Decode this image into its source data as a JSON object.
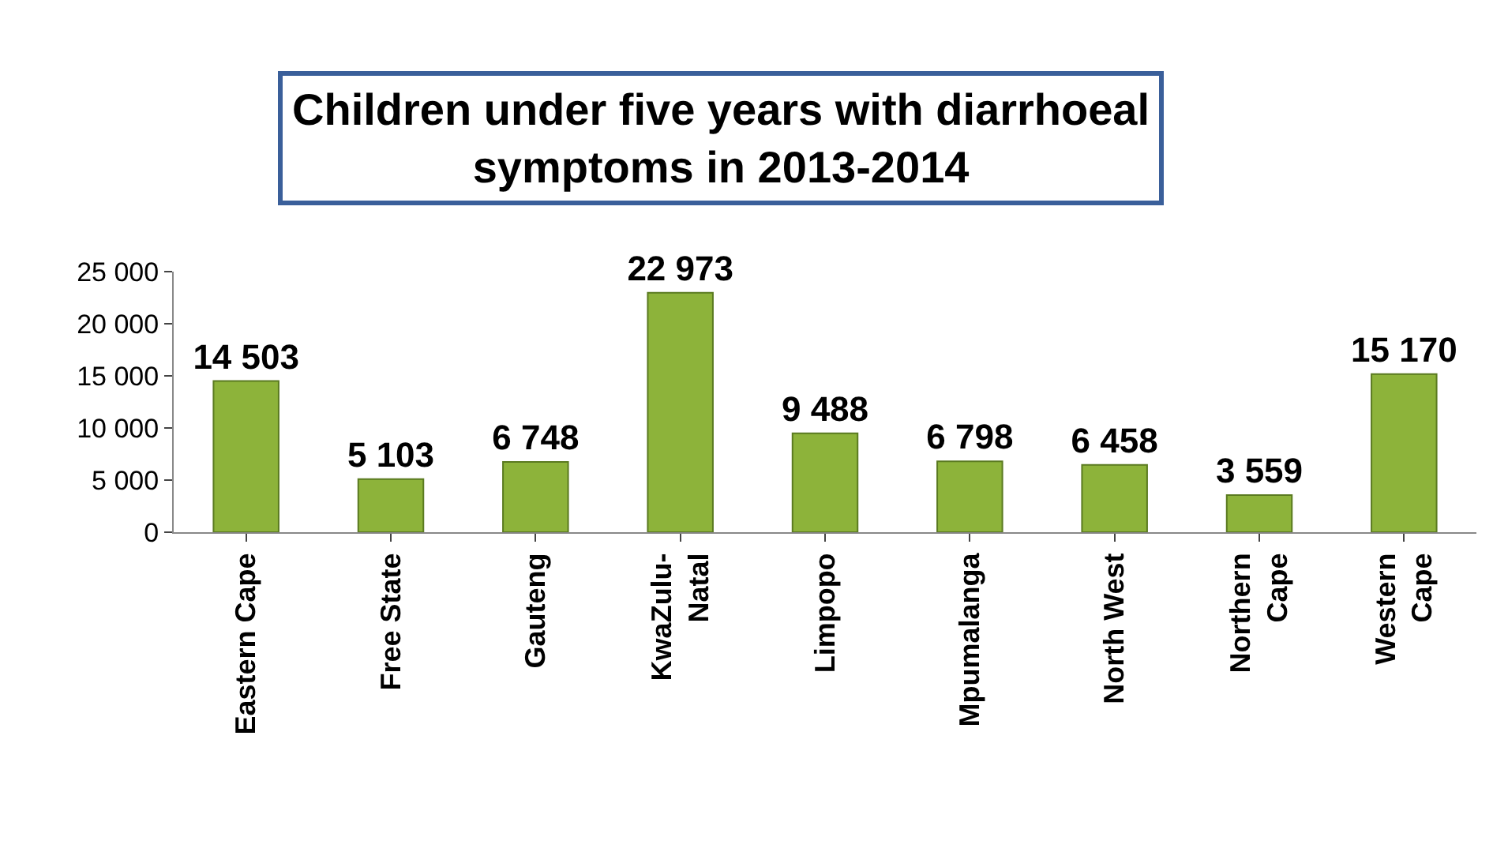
{
  "chart_data": {
    "type": "bar",
    "title": "Children under five years with diarrhoeal\nsymptoms in 2013-2014",
    "categories": [
      "Eastern Cape",
      "Free State",
      "Gauteng",
      "KwaZulu-\nNatal",
      "Limpopo",
      "Mpumalanga",
      "North West",
      "Northern\nCape",
      "Western\nCape"
    ],
    "values": [
      14503,
      5103,
      6748,
      22973,
      9488,
      6798,
      6458,
      3559,
      15170
    ],
    "value_labels": [
      "14 503",
      "5 103",
      "6 748",
      "22 973",
      "9 488",
      "6 798",
      "6 458",
      "3 559",
      "15 170"
    ],
    "color": "#8db33a",
    "ylim": [
      0,
      25000
    ],
    "yticks": [
      0,
      {
        "value": 5000,
        "label": "5 000"
      },
      {
        "value": 10000,
        "label": "10 000"
      },
      {
        "value": 15000,
        "label": "15 000"
      },
      {
        "value": 20000,
        "label": "20 000"
      },
      {
        "value": 25000,
        "label": "25 000"
      }
    ],
    "legend": false
  }
}
